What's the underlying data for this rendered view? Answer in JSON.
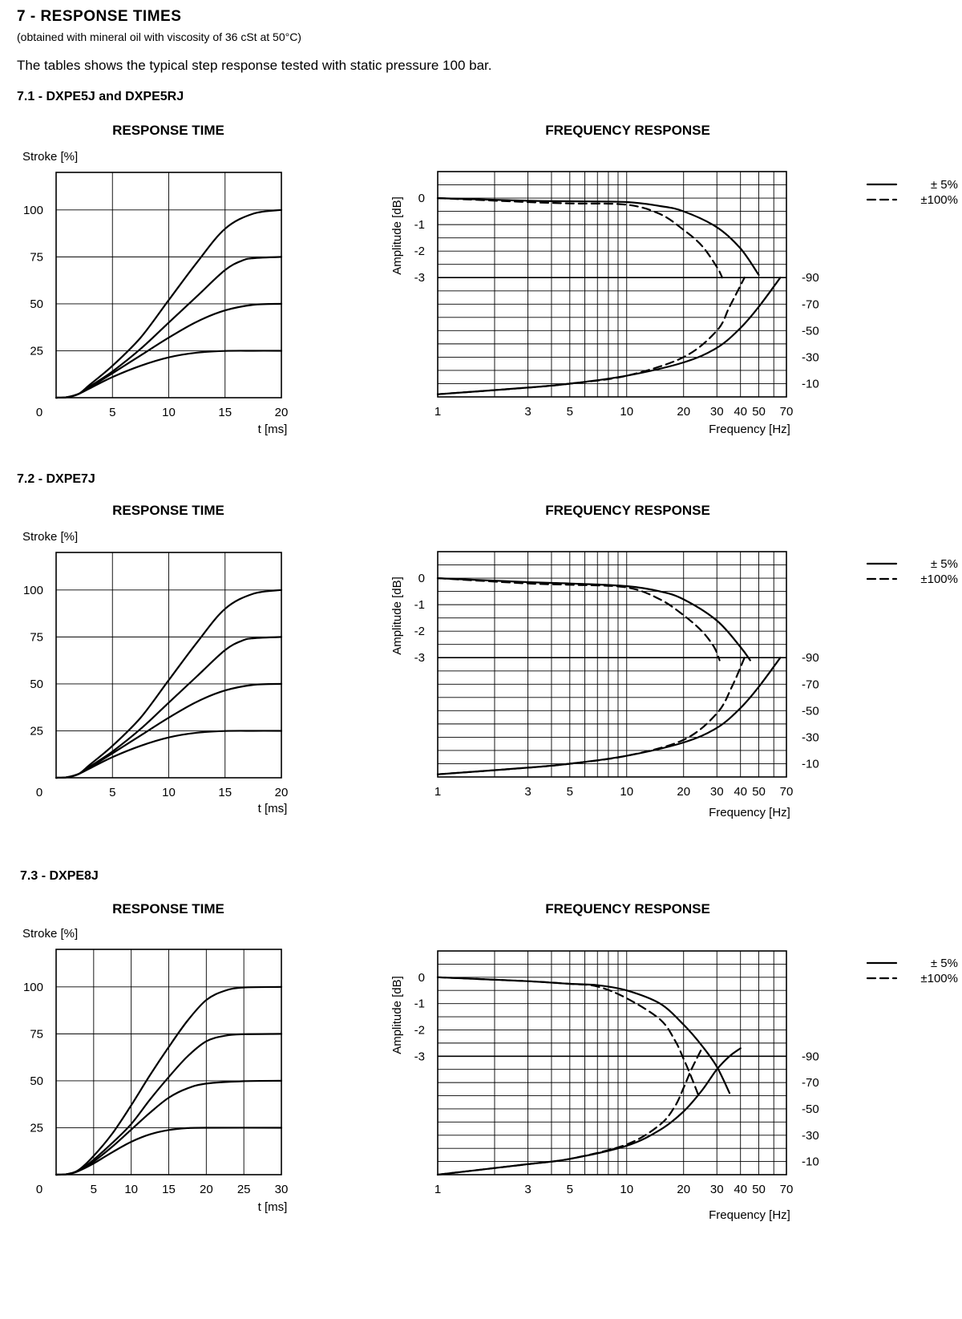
{
  "header": {
    "title": "7 - RESPONSE TIMES",
    "subtitle": "(obtained with mineral oil with viscosity of 36 cSt at 50°C)",
    "intro": "The tables shows the typical step response tested with static pressure 100 bar."
  },
  "legend": {
    "solid": "±   5%",
    "dashed": "±100%"
  },
  "sections": [
    {
      "title": "7.1 - DXPE5J and DXPE5RJ",
      "step": {
        "title": "RESPONSE TIME",
        "ylabel": "Stroke [%]",
        "xlabel": "t [ms]",
        "xmax": 20,
        "xticks": [
          0,
          5,
          10,
          15,
          20
        ],
        "yticks": [
          25,
          50,
          75,
          100
        ],
        "curves": [
          [
            [
              0,
              0
            ],
            [
              1,
              0.3
            ],
            [
              2,
              2
            ],
            [
              3,
              5
            ],
            [
              5,
              11
            ],
            [
              7.5,
              17
            ],
            [
              10,
              21.5
            ],
            [
              12.5,
              24
            ],
            [
              15,
              24.9
            ],
            [
              17.5,
              25
            ],
            [
              20,
              25
            ]
          ],
          [
            [
              0,
              0
            ],
            [
              1,
              0.3
            ],
            [
              2,
              2
            ],
            [
              3,
              5.5
            ],
            [
              5,
              13
            ],
            [
              7.5,
              22.5
            ],
            [
              10,
              32
            ],
            [
              12.5,
              40.5
            ],
            [
              15,
              46.5
            ],
            [
              17.5,
              49.5
            ],
            [
              20,
              50
            ]
          ],
          [
            [
              0,
              0
            ],
            [
              1,
              0.3
            ],
            [
              2,
              2
            ],
            [
              3,
              6
            ],
            [
              5,
              14
            ],
            [
              7.5,
              26
            ],
            [
              10,
              40
            ],
            [
              12.5,
              54
            ],
            [
              15,
              68
            ],
            [
              16.5,
              73
            ],
            [
              17.5,
              74.3
            ],
            [
              20,
              75
            ]
          ],
          [
            [
              0,
              0
            ],
            [
              1,
              0.3
            ],
            [
              2,
              2
            ],
            [
              3,
              7
            ],
            [
              5,
              17
            ],
            [
              7.5,
              32
            ],
            [
              10,
              52
            ],
            [
              12.5,
              72
            ],
            [
              15,
              90
            ],
            [
              17.5,
              98
            ],
            [
              20,
              100
            ]
          ]
        ]
      },
      "freq": {
        "title": "FREQUENCY RESPONSE",
        "ylabel": "Amplitude [dB]",
        "xlabel": "Frequency [Hz]",
        "xticks": [
          "1",
          "3",
          "5",
          "10",
          "20",
          "30",
          "40",
          "50",
          "70"
        ],
        "amp_ticks": [
          "0",
          "-1",
          "-2",
          "-3"
        ],
        "phase_ticks": [
          "-90",
          "-70",
          "-50",
          "-30",
          "-10"
        ],
        "amp_solid": [
          [
            1,
            0
          ],
          [
            3,
            -0.1
          ],
          [
            5,
            -0.12
          ],
          [
            10,
            -0.15
          ],
          [
            15,
            -0.3
          ],
          [
            20,
            -0.5
          ],
          [
            30,
            -1.1
          ],
          [
            40,
            -1.9
          ],
          [
            50,
            -2.9
          ]
        ],
        "amp_dashed": [
          [
            1,
            0
          ],
          [
            3,
            -0.15
          ],
          [
            5,
            -0.2
          ],
          [
            10,
            -0.25
          ],
          [
            15,
            -0.6
          ],
          [
            20,
            -1.2
          ],
          [
            25,
            -1.8
          ],
          [
            30,
            -2.6
          ],
          [
            32,
            -3.0
          ]
        ],
        "ph_solid": [
          [
            1,
            -2
          ],
          [
            3,
            -7
          ],
          [
            5,
            -10
          ],
          [
            10,
            -16
          ],
          [
            20,
            -26
          ],
          [
            30,
            -37
          ],
          [
            40,
            -52
          ],
          [
            50,
            -68
          ],
          [
            65,
            -90
          ]
        ],
        "ph_dashed": [
          [
            1,
            -2
          ],
          [
            3,
            -7
          ],
          [
            5,
            -10
          ],
          [
            10,
            -16
          ],
          [
            20,
            -30
          ],
          [
            30,
            -50
          ],
          [
            35,
            -68
          ],
          [
            42,
            -90
          ]
        ]
      }
    },
    {
      "title": "7.2 - DXPE7J",
      "step": {
        "title": "RESPONSE TIME",
        "ylabel": "Stroke [%]",
        "xlabel": "t [ms]",
        "xmax": 20,
        "xticks": [
          0,
          5,
          10,
          15,
          20
        ],
        "yticks": [
          25,
          50,
          75,
          100
        ],
        "curves": [
          [
            [
              0,
              0
            ],
            [
              1,
              0.3
            ],
            [
              2,
              2
            ],
            [
              3,
              5
            ],
            [
              5,
              11
            ],
            [
              7.5,
              17
            ],
            [
              10,
              21.5
            ],
            [
              12.5,
              24
            ],
            [
              15,
              24.9
            ],
            [
              17.5,
              25
            ],
            [
              20,
              25
            ]
          ],
          [
            [
              0,
              0
            ],
            [
              1,
              0.3
            ],
            [
              2,
              2
            ],
            [
              3,
              5.5
            ],
            [
              5,
              13
            ],
            [
              7.5,
              22.5
            ],
            [
              10,
              32
            ],
            [
              12.5,
              40.5
            ],
            [
              15,
              46.5
            ],
            [
              17.5,
              49.5
            ],
            [
              20,
              50
            ]
          ],
          [
            [
              0,
              0
            ],
            [
              1,
              0.3
            ],
            [
              2,
              2
            ],
            [
              3,
              6
            ],
            [
              5,
              14
            ],
            [
              7.5,
              26
            ],
            [
              10,
              40
            ],
            [
              12.5,
              54
            ],
            [
              15,
              68
            ],
            [
              16.5,
              73
            ],
            [
              17.5,
              74.3
            ],
            [
              20,
              75
            ]
          ],
          [
            [
              0,
              0
            ],
            [
              1,
              0.3
            ],
            [
              2,
              2
            ],
            [
              3,
              7
            ],
            [
              5,
              17
            ],
            [
              7.5,
              32
            ],
            [
              10,
              52
            ],
            [
              12.5,
              72
            ],
            [
              15,
              90
            ],
            [
              17.5,
              98
            ],
            [
              20,
              100
            ]
          ]
        ]
      },
      "freq": {
        "title": "FREQUENCY RESPONSE",
        "ylabel": "Amplitude [dB]",
        "xlabel": "Frequency [Hz]",
        "xticks": [
          "1",
          "3",
          "5",
          "10",
          "20",
          "30",
          "40",
          "50",
          "70"
        ],
        "amp_ticks": [
          "0",
          "-1",
          "-2",
          "-3"
        ],
        "phase_ticks": [
          "-90",
          "-70",
          "-50",
          "-30",
          "-10"
        ],
        "amp_solid": [
          [
            1,
            0
          ],
          [
            3,
            -0.15
          ],
          [
            5,
            -0.2
          ],
          [
            10,
            -0.3
          ],
          [
            15,
            -0.5
          ],
          [
            20,
            -0.8
          ],
          [
            30,
            -1.6
          ],
          [
            40,
            -2.6
          ],
          [
            45,
            -3.1
          ]
        ],
        "amp_dashed": [
          [
            1,
            0
          ],
          [
            3,
            -0.2
          ],
          [
            5,
            -0.25
          ],
          [
            10,
            -0.35
          ],
          [
            15,
            -0.8
          ],
          [
            20,
            -1.4
          ],
          [
            25,
            -2.0
          ],
          [
            29,
            -2.6
          ],
          [
            31,
            -3.1
          ]
        ],
        "ph_solid": [
          [
            1,
            -2
          ],
          [
            3,
            -7
          ],
          [
            5,
            -10
          ],
          [
            10,
            -16
          ],
          [
            20,
            -26
          ],
          [
            30,
            -37
          ],
          [
            40,
            -52
          ],
          [
            50,
            -68
          ],
          [
            65,
            -90
          ]
        ],
        "ph_dashed": [
          [
            1,
            -2
          ],
          [
            3,
            -7
          ],
          [
            5,
            -10
          ],
          [
            10,
            -16
          ],
          [
            20,
            -28
          ],
          [
            30,
            -48
          ],
          [
            36,
            -68
          ],
          [
            42,
            -90
          ]
        ]
      }
    },
    {
      "title": "7.3 - DXPE8J",
      "step": {
        "title": "RESPONSE TIME",
        "ylabel": "Stroke [%]",
        "xlabel": "t [ms]",
        "xmax": 30,
        "xticks": [
          0,
          5,
          10,
          15,
          20,
          25,
          30
        ],
        "yticks": [
          25,
          50,
          75,
          100
        ],
        "curves": [
          [
            [
              0,
              0
            ],
            [
              1.5,
              0.3
            ],
            [
              3,
              2
            ],
            [
              5,
              6
            ],
            [
              7.5,
              12
            ],
            [
              10,
              17.5
            ],
            [
              12.5,
              21.5
            ],
            [
              15,
              23.8
            ],
            [
              17.5,
              24.8
            ],
            [
              20,
              25
            ],
            [
              30,
              25
            ]
          ],
          [
            [
              0,
              0
            ],
            [
              1.5,
              0.3
            ],
            [
              3,
              2
            ],
            [
              5,
              7
            ],
            [
              7.5,
              15
            ],
            [
              10,
              24
            ],
            [
              12.5,
              33
            ],
            [
              15,
              41
            ],
            [
              17.5,
              46
            ],
            [
              20,
              48.5
            ],
            [
              25,
              49.8
            ],
            [
              30,
              50
            ]
          ],
          [
            [
              0,
              0
            ],
            [
              1.5,
              0.3
            ],
            [
              3,
              2
            ],
            [
              5,
              8
            ],
            [
              7.5,
              17
            ],
            [
              10,
              27
            ],
            [
              12.5,
              40
            ],
            [
              15,
              52
            ],
            [
              17.5,
              63
            ],
            [
              20,
              71
            ],
            [
              22.5,
              74
            ],
            [
              25,
              74.8
            ],
            [
              30,
              75
            ]
          ],
          [
            [
              0,
              0
            ],
            [
              1.5,
              0.3
            ],
            [
              3,
              2.5
            ],
            [
              5,
              10
            ],
            [
              7.5,
              22
            ],
            [
              10,
              37
            ],
            [
              12.5,
              53
            ],
            [
              15,
              68
            ],
            [
              17.5,
              82
            ],
            [
              20,
              93
            ],
            [
              22.5,
              98
            ],
            [
              25,
              99.7
            ],
            [
              30,
              100
            ]
          ]
        ]
      },
      "freq": {
        "title": "FREQUENCY RESPONSE",
        "ylabel": "Amplitude [dB]",
        "xlabel": "Frequency [Hz]",
        "xticks": [
          "1",
          "3",
          "5",
          "10",
          "20",
          "30",
          "40",
          "50",
          "70"
        ],
        "amp_solid": [
          [
            1,
            0
          ],
          [
            3,
            -0.15
          ],
          [
            5,
            -0.25
          ],
          [
            7,
            -0.3
          ],
          [
            10,
            -0.5
          ],
          [
            15,
            -1.0
          ],
          [
            20,
            -1.8
          ],
          [
            25,
            -2.6
          ],
          [
            30,
            -3.4
          ],
          [
            35,
            -4.4
          ]
        ],
        "amp_dashed": [
          [
            1,
            0
          ],
          [
            3,
            -0.15
          ],
          [
            5,
            -0.25
          ],
          [
            7,
            -0.35
          ],
          [
            10,
            -0.8
          ],
          [
            15,
            -1.6
          ],
          [
            18,
            -2.4
          ],
          [
            20,
            -3.1
          ],
          [
            22,
            -3.8
          ],
          [
            24,
            -4.5
          ]
        ],
        "ph_solid": [
          [
            1,
            0
          ],
          [
            3,
            -8
          ],
          [
            5,
            -12
          ],
          [
            10,
            -22
          ],
          [
            15,
            -34
          ],
          [
            20,
            -48
          ],
          [
            25,
            -64
          ],
          [
            30,
            -80
          ],
          [
            35,
            -90
          ],
          [
            40,
            -96
          ]
        ],
        "ph_dashed": [
          [
            1,
            0
          ],
          [
            3,
            -8
          ],
          [
            5,
            -12
          ],
          [
            10,
            -23
          ],
          [
            15,
            -38
          ],
          [
            18,
            -52
          ],
          [
            20,
            -66
          ],
          [
            22,
            -80
          ],
          [
            25,
            -96
          ]
        ],
        "amp_ticks": [
          "0",
          "-1",
          "-2",
          "-3"
        ],
        "phase_ticks": [
          "-90",
          "-70",
          "-50",
          "-30",
          "-10"
        ]
      }
    }
  ]
}
